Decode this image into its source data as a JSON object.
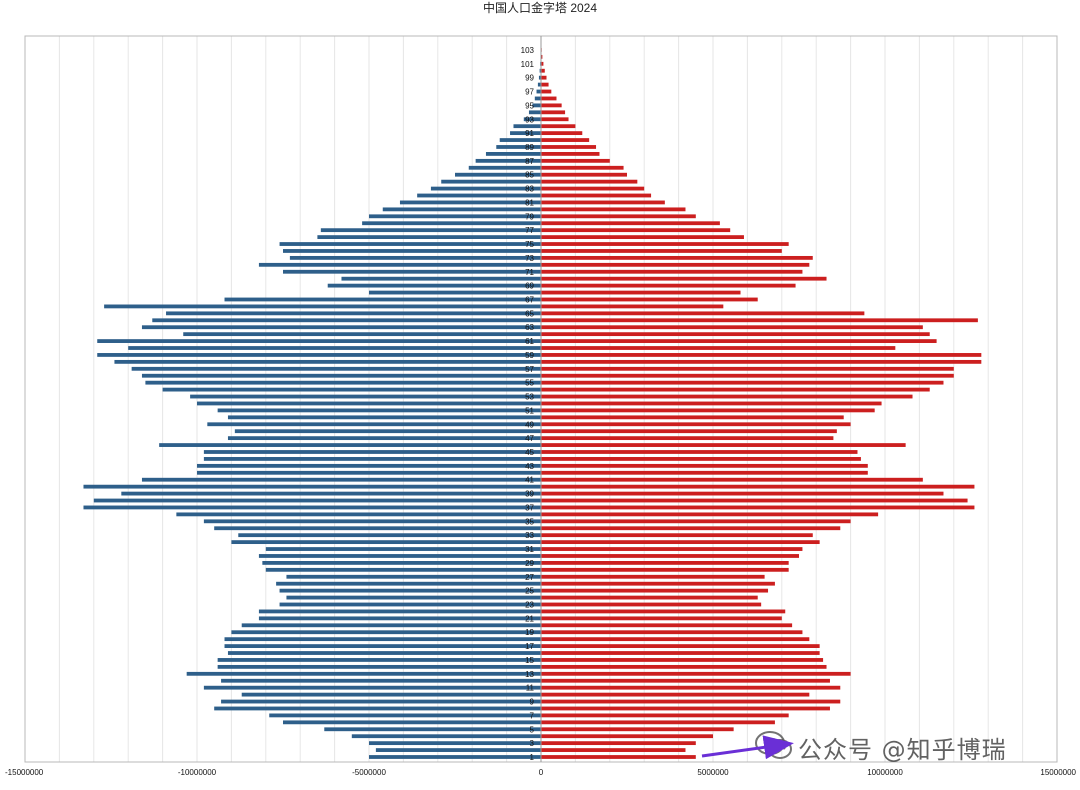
{
  "watermark": {
    "text": "公众号 @知乎博瑞"
  },
  "chart_data": {
    "type": "bar",
    "orientation": "horizontal",
    "title": "中国人口金字塔 2024",
    "xlabel": "",
    "ylabel": "",
    "xlim": [
      -15000000,
      15000000
    ],
    "x_ticks": [
      -15000000,
      -10000000,
      -5000000,
      0,
      5000000,
      10000000,
      15000000
    ],
    "x_tick_labels": [
      "-15000000",
      "-10000000",
      "-5000000",
      "0",
      "5000000",
      "10000000",
      "15000000"
    ],
    "grid": true,
    "legend": "none",
    "y_tick_labels": [
      "1",
      "3",
      "5",
      "7",
      "9",
      "11",
      "13",
      "15",
      "17",
      "19",
      "21",
      "23",
      "25",
      "27",
      "29",
      "31",
      "33",
      "35",
      "37",
      "39",
      "41",
      "43",
      "45",
      "47",
      "49",
      "51",
      "53",
      "55",
      "57",
      "59",
      "61",
      "63",
      "65",
      "67",
      "69",
      "71",
      "73",
      "75",
      "77",
      "79",
      "81",
      "83",
      "85",
      "87",
      "89",
      "91",
      "93",
      "95",
      "97",
      "99",
      "101",
      "103"
    ],
    "categories": [
      1,
      2,
      3,
      4,
      5,
      6,
      7,
      8,
      9,
      10,
      11,
      12,
      13,
      14,
      15,
      16,
      17,
      18,
      19,
      20,
      21,
      22,
      23,
      24,
      25,
      26,
      27,
      28,
      29,
      30,
      31,
      32,
      33,
      34,
      35,
      36,
      37,
      38,
      39,
      40,
      41,
      42,
      43,
      44,
      45,
      46,
      47,
      48,
      49,
      50,
      51,
      52,
      53,
      54,
      55,
      56,
      57,
      58,
      59,
      60,
      61,
      62,
      63,
      64,
      65,
      66,
      67,
      68,
      69,
      70,
      71,
      72,
      73,
      74,
      75,
      76,
      77,
      78,
      79,
      80,
      81,
      82,
      83,
      84,
      85,
      86,
      87,
      88,
      89,
      90,
      91,
      92,
      93,
      94,
      95,
      96,
      97,
      98,
      99,
      100,
      101,
      102,
      103,
      104
    ],
    "colors": {
      "left": "#2e5f8a",
      "right": "#cc1f1f"
    },
    "series": [
      {
        "side": "left",
        "values": [
          -5000000,
          -4800000,
          -5000000,
          -5500000,
          -6300000,
          -7500000,
          -7900000,
          -9500000,
          -9300000,
          -8700000,
          -9800000,
          -9300000,
          -10300000,
          -9400000,
          -9400000,
          -9100000,
          -9200000,
          -9200000,
          -9000000,
          -8700000,
          -8200000,
          -8200000,
          -7600000,
          -7400000,
          -7600000,
          -7700000,
          -7400000,
          -8000000,
          -8100000,
          -8200000,
          -8000000,
          -9000000,
          -8800000,
          -9500000,
          -9800000,
          -10600000,
          -13300000,
          -13000000,
          -12200000,
          -13300000,
          -11600000,
          -10000000,
          -10000000,
          -9800000,
          -9800000,
          -11100000,
          -9100000,
          -8900000,
          -9700000,
          -9100000,
          -9400000,
          -10000000,
          -10200000,
          -11000000,
          -11500000,
          -11600000,
          -11900000,
          -12400000,
          -12900000,
          -12000000,
          -12900000,
          -10400000,
          -11600000,
          -11300000,
          -10900000,
          -12700000,
          -9200000,
          -5000000,
          -6200000,
          -5800000,
          -7500000,
          -8200000,
          -7300000,
          -7500000,
          -7600000,
          -6500000,
          -6400000,
          -5200000,
          -5000000,
          -4600000,
          -4100000,
          -3600000,
          -3200000,
          -2900000,
          -2500000,
          -2100000,
          -1900000,
          -1600000,
          -1300000,
          -1200000,
          -900000,
          -800000,
          -500000,
          -350000,
          -250000,
          -180000,
          -130000,
          -90000,
          -60000,
          -40000,
          -25000,
          -15000,
          -8000,
          -4000
        ]
      },
      {
        "side": "right",
        "values": [
          4500000,
          4200000,
          4500000,
          5000000,
          5600000,
          6800000,
          7200000,
          8400000,
          8700000,
          7800000,
          8700000,
          8400000,
          9000000,
          8300000,
          8200000,
          8100000,
          8100000,
          7800000,
          7600000,
          7300000,
          7000000,
          7100000,
          6400000,
          6300000,
          6600000,
          6800000,
          6500000,
          7200000,
          7200000,
          7500000,
          7600000,
          8100000,
          7900000,
          8700000,
          9000000,
          9800000,
          12600000,
          12400000,
          11700000,
          12600000,
          11100000,
          9500000,
          9500000,
          9300000,
          9200000,
          10600000,
          8500000,
          8600000,
          9000000,
          8800000,
          9700000,
          9900000,
          10800000,
          11300000,
          11700000,
          12000000,
          12000000,
          12800000,
          12800000,
          10300000,
          11500000,
          11300000,
          11100000,
          12700000,
          9400000,
          5300000,
          6300000,
          5800000,
          7400000,
          8300000,
          7600000,
          7800000,
          7900000,
          7000000,
          7200000,
          5900000,
          5500000,
          5200000,
          4500000,
          4200000,
          3600000,
          3200000,
          3000000,
          2800000,
          2500000,
          2400000,
          2000000,
          1700000,
          1600000,
          1400000,
          1200000,
          1000000,
          800000,
          700000,
          600000,
          450000,
          300000,
          220000,
          160000,
          110000,
          70000,
          40000,
          20000,
          10000
        ]
      }
    ]
  }
}
